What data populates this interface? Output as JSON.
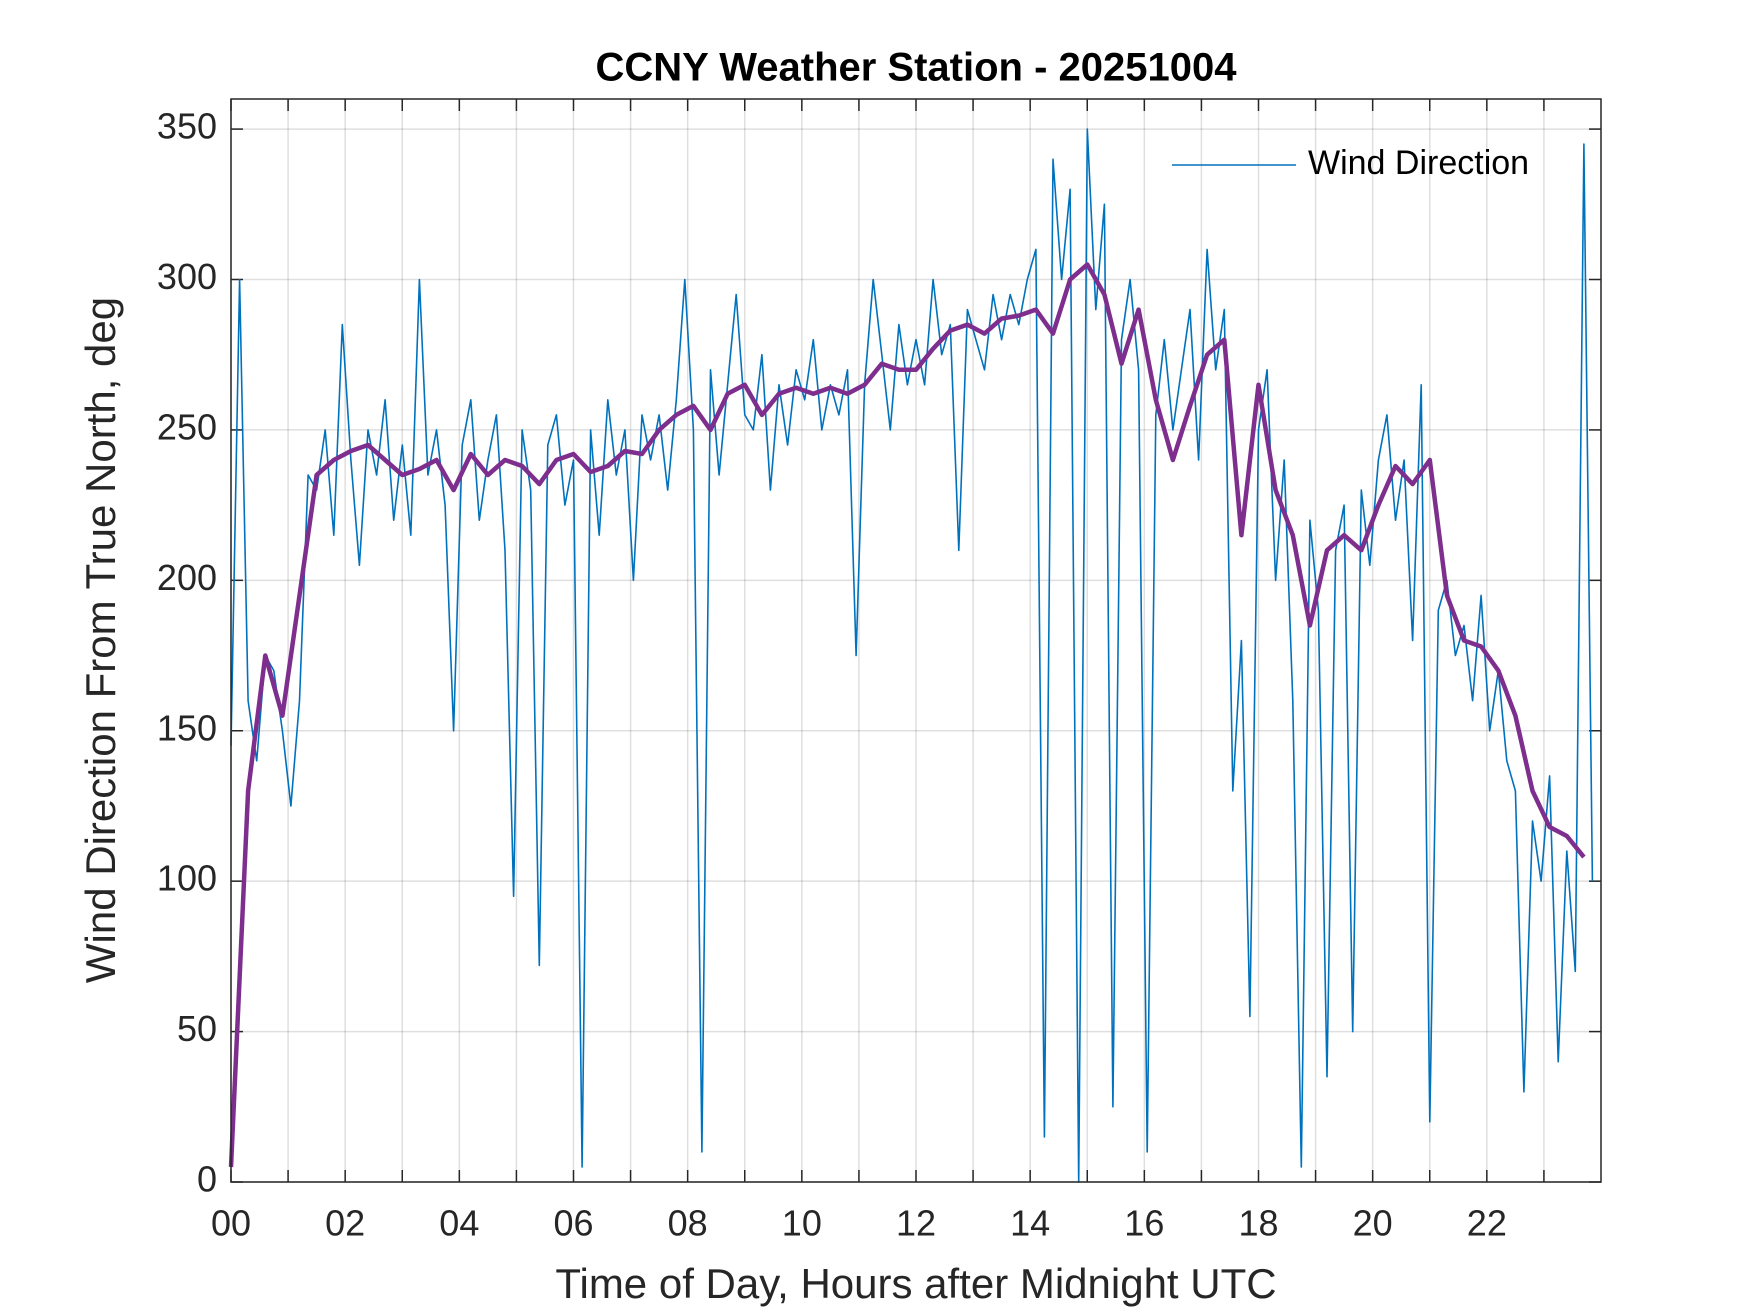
{
  "chart_data": {
    "type": "line",
    "title": "CCNY Weather Station - 20251004",
    "xlabel": "Time of Day, Hours after Midnight UTC",
    "ylabel": "Wind Direction From True North, deg",
    "xlim": [
      0,
      24
    ],
    "ylim": [
      0,
      360
    ],
    "xticks": [
      {
        "value": 0,
        "label": "00"
      },
      {
        "value": 2,
        "label": "02"
      },
      {
        "value": 4,
        "label": "04"
      },
      {
        "value": 6,
        "label": "06"
      },
      {
        "value": 8,
        "label": "08"
      },
      10,
      12,
      14,
      16,
      18,
      20,
      22
    ],
    "xminorticks": [
      1,
      3,
      5,
      7,
      9,
      11,
      13,
      15,
      17,
      19,
      21,
      23
    ],
    "yticks": [
      0,
      50,
      100,
      150,
      200,
      250,
      300,
      350
    ],
    "grid": true,
    "legend": "upper right",
    "series": [
      {
        "name": "Wind Direction",
        "color": "#0072bd",
        "x": [
          0,
          0.15,
          0.3,
          0.45,
          0.6,
          0.75,
          0.9,
          1.05,
          1.2,
          1.35,
          1.5,
          1.65,
          1.8,
          1.95,
          2.1,
          2.25,
          2.4,
          2.55,
          2.7,
          2.85,
          3,
          3.15,
          3.3,
          3.45,
          3.6,
          3.75,
          3.9,
          4.05,
          4.2,
          4.35,
          4.5,
          4.65,
          4.8,
          4.95,
          5.1,
          5.25,
          5.4,
          5.55,
          5.7,
          5.85,
          6,
          6.15,
          6.3,
          6.45,
          6.6,
          6.75,
          6.9,
          7.05,
          7.2,
          7.35,
          7.5,
          7.65,
          7.8,
          7.95,
          8.1,
          8.25,
          8.4,
          8.55,
          8.7,
          8.85,
          9,
          9.15,
          9.3,
          9.45,
          9.6,
          9.75,
          9.9,
          10.05,
          10.2,
          10.35,
          10.5,
          10.65,
          10.8,
          10.95,
          11.1,
          11.25,
          11.4,
          11.55,
          11.7,
          11.85,
          12,
          12.15,
          12.3,
          12.45,
          12.6,
          12.75,
          12.9,
          13.05,
          13.2,
          13.35,
          13.5,
          13.65,
          13.8,
          13.95,
          14.1,
          14.25,
          14.4,
          14.55,
          14.7,
          14.85,
          15,
          15.15,
          15.3,
          15.45,
          15.6,
          15.75,
          15.9,
          16.05,
          16.2,
          16.35,
          16.5,
          16.65,
          16.8,
          16.95,
          17.1,
          17.25,
          17.4,
          17.55,
          17.7,
          17.85,
          18,
          18.15,
          18.3,
          18.45,
          18.6,
          18.75,
          18.9,
          19.05,
          19.2,
          19.35,
          19.5,
          19.65,
          19.8,
          19.95,
          20.1,
          20.25,
          20.4,
          20.55,
          20.7,
          20.85,
          21,
          21.15,
          21.3,
          21.45,
          21.6,
          21.75,
          21.9,
          22.05,
          22.2,
          22.35,
          22.5,
          22.65,
          22.8,
          22.95,
          23.1,
          23.25,
          23.4,
          23.55,
          23.7,
          23.85
        ],
        "values": [
          145,
          300,
          160,
          140,
          175,
          170,
          150,
          125,
          160,
          235,
          230,
          250,
          215,
          285,
          240,
          205,
          250,
          235,
          260,
          220,
          245,
          215,
          300,
          235,
          250,
          225,
          150,
          245,
          260,
          220,
          240,
          255,
          210,
          95,
          250,
          230,
          72,
          245,
          255,
          225,
          240,
          5,
          250,
          215,
          260,
          235,
          250,
          200,
          255,
          240,
          255,
          230,
          260,
          300,
          250,
          10,
          270,
          235,
          265,
          295,
          255,
          250,
          275,
          230,
          265,
          245,
          270,
          260,
          280,
          250,
          265,
          255,
          270,
          175,
          265,
          300,
          275,
          250,
          285,
          265,
          280,
          265,
          300,
          275,
          285,
          210,
          290,
          280,
          270,
          295,
          280,
          295,
          285,
          300,
          310,
          15,
          340,
          300,
          330,
          0,
          350,
          290,
          325,
          25,
          280,
          300,
          270,
          10,
          255,
          280,
          250,
          270,
          290,
          240,
          310,
          270,
          290,
          130,
          180,
          55,
          250,
          270,
          200,
          240,
          160,
          5,
          220,
          190,
          35,
          210,
          225,
          50,
          230,
          205,
          240,
          255,
          220,
          240,
          180,
          265,
          20,
          190,
          200,
          175,
          185,
          160,
          195,
          150,
          170,
          140,
          130,
          30,
          120,
          100,
          135,
          40,
          110,
          70,
          345,
          100
        ]
      },
      {
        "color": "#7e2f8e",
        "x": [
          0,
          0.3,
          0.6,
          0.9,
          1.2,
          1.5,
          1.8,
          2.1,
          2.4,
          2.7,
          3,
          3.3,
          3.6,
          3.9,
          4.2,
          4.5,
          4.8,
          5.1,
          5.4,
          5.7,
          6,
          6.3,
          6.6,
          6.9,
          7.2,
          7.5,
          7.8,
          8.1,
          8.4,
          8.7,
          9,
          9.3,
          9.6,
          9.9,
          10.2,
          10.5,
          10.8,
          11.1,
          11.4,
          11.7,
          12,
          12.3,
          12.6,
          12.9,
          13.2,
          13.5,
          13.8,
          14.1,
          14.4,
          14.7,
          15,
          15.3,
          15.6,
          15.9,
          16.2,
          16.5,
          16.8,
          17.1,
          17.4,
          17.7,
          18,
          18.3,
          18.6,
          18.9,
          19.2,
          19.5,
          19.8,
          20.1,
          20.4,
          20.7,
          21,
          21.3,
          21.6,
          21.9,
          22.2,
          22.5,
          22.8,
          23.1,
          23.4,
          23.7
        ],
        "values": [
          5,
          130,
          175,
          155,
          195,
          235,
          240,
          243,
          245,
          240,
          235,
          237,
          240,
          230,
          242,
          235,
          240,
          238,
          232,
          240,
          242,
          236,
          238,
          243,
          242,
          250,
          255,
          258,
          250,
          262,
          265,
          255,
          262,
          264,
          262,
          264,
          262,
          265,
          272,
          270,
          270,
          277,
          283,
          285,
          282,
          287,
          288,
          290,
          282,
          300,
          305,
          295,
          272,
          290,
          260,
          240,
          258,
          275,
          280,
          215,
          265,
          230,
          215,
          185,
          210,
          215,
          210,
          225,
          238,
          232,
          240,
          195,
          180,
          178,
          170,
          155,
          130,
          118,
          115,
          108
        ]
      }
    ]
  }
}
